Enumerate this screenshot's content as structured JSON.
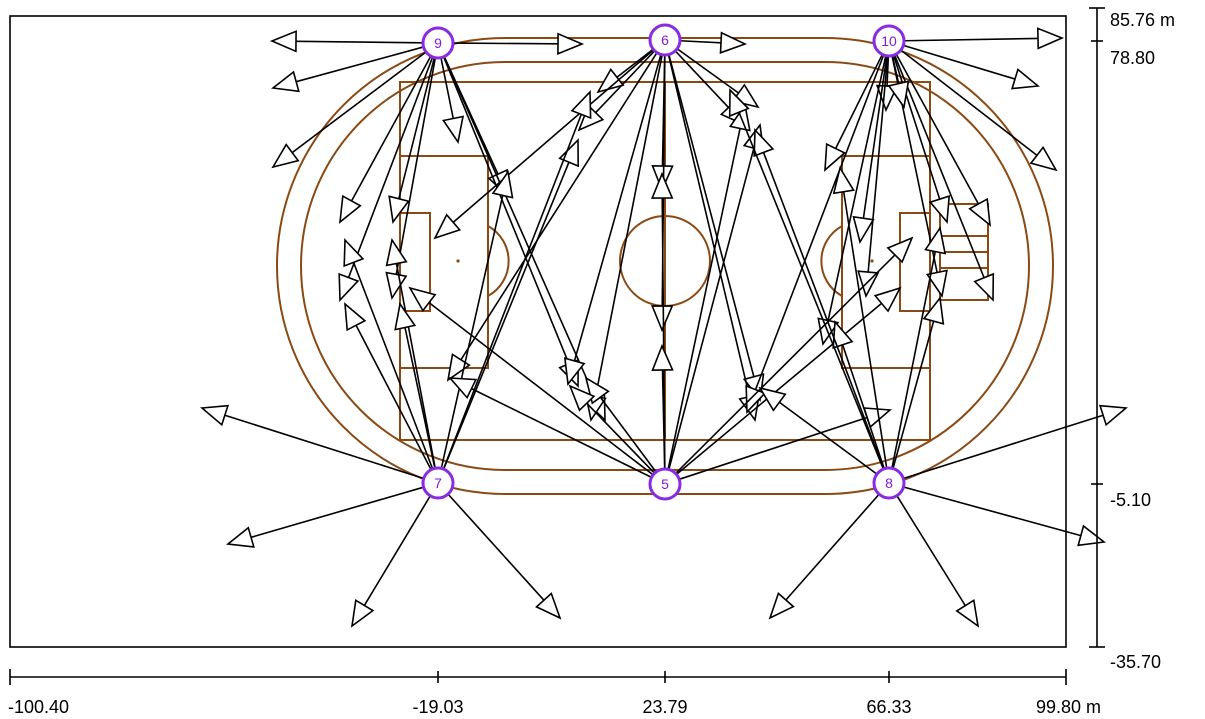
{
  "axes": {
    "x_ticks": [
      "-100.40",
      "-19.03",
      "23.79",
      "66.33",
      "99.80 m"
    ],
    "y_ticks": [
      "85.76 m",
      "78.80",
      "-5.10",
      "-35.70"
    ]
  },
  "poles": [
    {
      "id": "9",
      "label": "9"
    },
    {
      "id": "6",
      "label": "6"
    },
    {
      "id": "10",
      "label": "10"
    },
    {
      "id": "7",
      "label": "7"
    },
    {
      "id": "5",
      "label": "5"
    },
    {
      "id": "8",
      "label": "8"
    }
  ],
  "colors": {
    "field_lines": "#8b4a14",
    "pole_marker": "#8a2be2",
    "aim_arrows": "#000000"
  }
}
